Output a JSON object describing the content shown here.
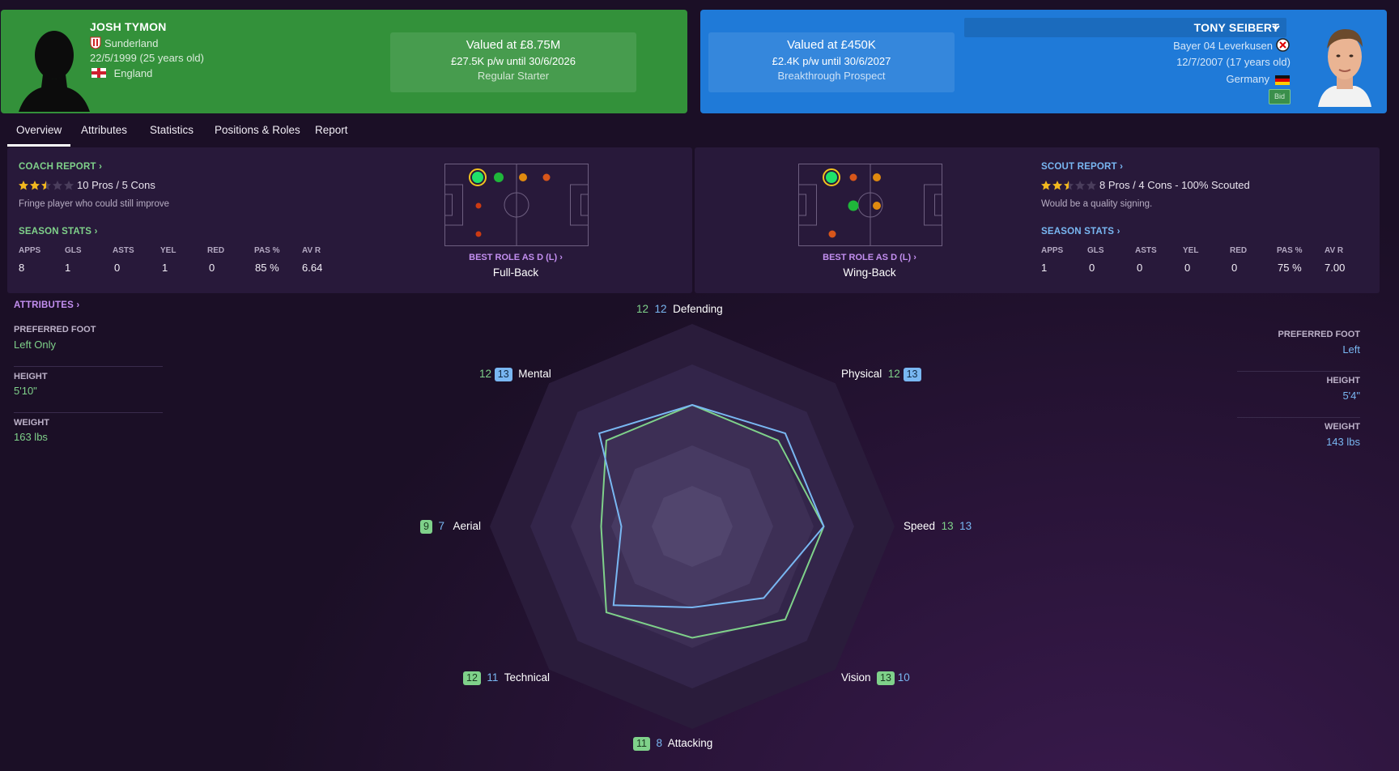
{
  "player_left": {
    "name": "JOSH TYMON",
    "club": "Sunderland",
    "dob": "22/5/1999 (25 years old)",
    "nation": "England",
    "value": "Valued at £8.75M",
    "wage": "£27.5K p/w until 30/6/2026",
    "status": "Regular Starter"
  },
  "player_right": {
    "name": "TONY SEIBERT",
    "club": "Bayer 04 Leverkusen",
    "dob": "12/7/2007 (17 years old)",
    "nation": "Germany",
    "value": "Valued at £450K",
    "wage": "£2.4K p/w until 30/6/2027",
    "status": "Breakthrough Prospect",
    "bid_label": "Bid"
  },
  "tabs": [
    "Overview",
    "Attributes",
    "Statistics",
    "Positions & Roles",
    "Report"
  ],
  "coach_report": {
    "title": "COACH REPORT",
    "stars": 2.5,
    "pros_cons": "10 Pros / 5 Cons",
    "summary": "Fringe player who could still improve"
  },
  "scout_report": {
    "title": "SCOUT REPORT",
    "stars": 2.5,
    "pros_cons": "8 Pros / 4 Cons - 100% Scouted",
    "summary": "Would be a quality signing."
  },
  "season_stats_title": "SEASON STATS",
  "stat_headers": [
    "APPS",
    "GLS",
    "ASTS",
    "YEL",
    "RED",
    "PAS %",
    "AV R"
  ],
  "stats_left": [
    "8",
    "1",
    "0",
    "1",
    "0",
    "85 %",
    "6.64"
  ],
  "stats_right": [
    "1",
    "0",
    "0",
    "0",
    "0",
    "75 %",
    "7.00"
  ],
  "best_role": {
    "heading": "BEST ROLE AS D (L)",
    "left": "Full-Back",
    "right": "Wing-Back"
  },
  "attributes": {
    "title": "ATTRIBUTES",
    "foot_label": "PREFERRED FOOT",
    "height_label": "HEIGHT",
    "weight_label": "WEIGHT",
    "left": {
      "foot": "Left Only",
      "height": "5'10\"",
      "weight": "163 lbs"
    },
    "right": {
      "foot": "Left",
      "height": "5'4\"",
      "weight": "143 lbs"
    }
  },
  "radar": {
    "axes": [
      {
        "label": "Defending",
        "left": "12",
        "right": "12"
      },
      {
        "label": "Physical",
        "left": "12",
        "right": "13"
      },
      {
        "label": "Speed",
        "left": "13",
        "right": "13"
      },
      {
        "label": "Vision",
        "left": "13",
        "right": "10"
      },
      {
        "label": "Attacking",
        "left": "11",
        "right": "8"
      },
      {
        "label": "Technical",
        "left": "12",
        "right": "11"
      },
      {
        "label": "Aerial",
        "left": "9",
        "right": "7"
      },
      {
        "label": "Mental",
        "left": "12",
        "right": "13"
      }
    ],
    "left_color": "#7fd18a",
    "right_color": "#79b7f2"
  },
  "colors": {
    "left_card": "#33913a",
    "right_card": "#1f7ad8",
    "background": "#1b0f26"
  }
}
